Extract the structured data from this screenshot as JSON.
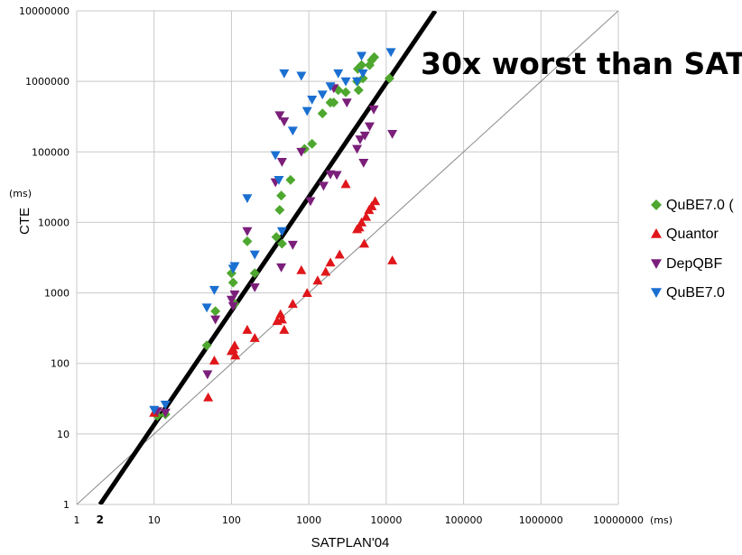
{
  "chart_data": {
    "type": "scatter",
    "title": "",
    "xlabel": "SATPLAN'04",
    "ylabel": "CTE",
    "x_unit": "(ms)",
    "y_unit": "(ms)",
    "x_scale": "log",
    "y_scale": "log",
    "xlim": [
      1,
      10000000
    ],
    "ylim": [
      1,
      10000000
    ],
    "grid": true,
    "legend_position": "right",
    "x_ticks": [
      "1",
      "10",
      "100",
      "1000",
      "10000",
      "100000",
      "1000000",
      "10000000"
    ],
    "y_ticks": [
      "1",
      "10",
      "100",
      "1000",
      "10000",
      "100000",
      "1000000",
      "10000000"
    ],
    "extra_x_tick": "2",
    "annotation": "30x worst than SAT",
    "reference_lines": [
      {
        "label": "y = x",
        "from": [
          1,
          1
        ],
        "to": [
          10000000,
          10000000
        ],
        "color": "#888888"
      },
      {
        "label": "y = 30x",
        "from": [
          2,
          1
        ],
        "to": [
          43000,
          10000000
        ],
        "color": "#000000"
      }
    ],
    "series": [
      {
        "name": "QuBE7.0 (",
        "marker": "diamond",
        "color": "#4ea72e",
        "points": [
          [
            11,
            18
          ],
          [
            14,
            19
          ],
          [
            48,
            180
          ],
          [
            62,
            550
          ],
          [
            100,
            1900
          ],
          [
            105,
            1400
          ],
          [
            110,
            700
          ],
          [
            160,
            5400
          ],
          [
            200,
            1900
          ],
          [
            380,
            6200
          ],
          [
            420,
            15000
          ],
          [
            440,
            24000
          ],
          [
            450,
            5000
          ],
          [
            580,
            40000
          ],
          [
            880,
            110000
          ],
          [
            1100,
            130000
          ],
          [
            1500,
            350000
          ],
          [
            1900,
            500000
          ],
          [
            2100,
            500000
          ],
          [
            2400,
            750000
          ],
          [
            3000,
            700000
          ],
          [
            4200,
            1000000
          ],
          [
            4300,
            1500000
          ],
          [
            4400,
            750000
          ],
          [
            4800,
            1700000
          ],
          [
            5000,
            1100000
          ],
          [
            6100,
            1700000
          ],
          [
            6500,
            2000000
          ],
          [
            7000,
            2200000
          ],
          [
            11000,
            1100000
          ]
        ]
      },
      {
        "name": "Quantor",
        "marker": "triangle-up",
        "color": "#e0161a",
        "points": [
          [
            10,
            20
          ],
          [
            50,
            33
          ],
          [
            60,
            110
          ],
          [
            100,
            150
          ],
          [
            105,
            160
          ],
          [
            110,
            180
          ],
          [
            112,
            130
          ],
          [
            160,
            300
          ],
          [
            200,
            230
          ],
          [
            390,
            400
          ],
          [
            430,
            500
          ],
          [
            450,
            420
          ],
          [
            480,
            300
          ],
          [
            620,
            700
          ],
          [
            800,
            2100
          ],
          [
            950,
            1000
          ],
          [
            1300,
            1500
          ],
          [
            1650,
            2000
          ],
          [
            1900,
            2700
          ],
          [
            2500,
            3500
          ],
          [
            3000,
            35000
          ],
          [
            4200,
            8000
          ],
          [
            4500,
            8500
          ],
          [
            4800,
            10000
          ],
          [
            5200,
            5000
          ],
          [
            5500,
            12000
          ],
          [
            6000,
            15000
          ],
          [
            6500,
            17000
          ],
          [
            7200,
            20000
          ],
          [
            12000,
            2900
          ]
        ]
      },
      {
        "name": "DepQBF",
        "marker": "triangle-down",
        "color": "#7b1f7a",
        "points": [
          [
            11,
            21
          ],
          [
            14,
            20
          ],
          [
            49,
            70
          ],
          [
            62,
            420
          ],
          [
            100,
            800
          ],
          [
            105,
            650
          ],
          [
            110,
            950
          ],
          [
            160,
            7500
          ],
          [
            200,
            1200
          ],
          [
            370,
            37000
          ],
          [
            420,
            330000
          ],
          [
            440,
            2300
          ],
          [
            450,
            72000
          ],
          [
            480,
            270000
          ],
          [
            620,
            4800
          ],
          [
            800,
            100000
          ],
          [
            1050,
            20000
          ],
          [
            1550,
            33000
          ],
          [
            1900,
            48000
          ],
          [
            2100,
            800000
          ],
          [
            2300,
            47000
          ],
          [
            3100,
            500000
          ],
          [
            4200,
            110000
          ],
          [
            4600,
            150000
          ],
          [
            5100,
            70000
          ],
          [
            5300,
            170000
          ],
          [
            6100,
            230000
          ],
          [
            6900,
            400000
          ],
          [
            12000,
            180000
          ]
        ]
      },
      {
        "name": "QuBE7.0",
        "marker": "triangle-down",
        "color": "#1a6fd1",
        "points": [
          [
            10,
            22
          ],
          [
            14,
            26
          ],
          [
            48,
            620
          ],
          [
            60,
            1100
          ],
          [
            105,
            2200
          ],
          [
            110,
            2400
          ],
          [
            160,
            22000
          ],
          [
            200,
            3500
          ],
          [
            370,
            90000
          ],
          [
            410,
            40000
          ],
          [
            450,
            7500
          ],
          [
            480,
            1300000
          ],
          [
            620,
            200000
          ],
          [
            800,
            1200000
          ],
          [
            950,
            380000
          ],
          [
            1100,
            550000
          ],
          [
            1500,
            650000
          ],
          [
            1900,
            850000
          ],
          [
            2400,
            1300000
          ],
          [
            3000,
            1000000
          ],
          [
            4200,
            1000000
          ],
          [
            4800,
            2300000
          ],
          [
            5000,
            1300000
          ],
          [
            11500,
            2600000
          ]
        ]
      }
    ]
  }
}
